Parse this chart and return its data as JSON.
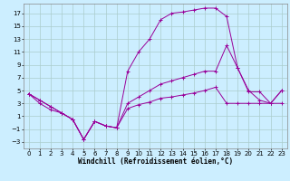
{
  "background_color": "#cceeff",
  "grid_color": "#aacccc",
  "line_color": "#990099",
  "marker": "+",
  "marker_size": 3,
  "marker_lw": 0.7,
  "line_lw": 0.7,
  "xlim": [
    -0.5,
    23.5
  ],
  "ylim": [
    -4,
    18.5
  ],
  "xticks": [
    0,
    1,
    2,
    3,
    4,
    5,
    6,
    7,
    8,
    9,
    10,
    11,
    12,
    13,
    14,
    15,
    16,
    17,
    18,
    19,
    20,
    21,
    22,
    23
  ],
  "yticks": [
    -3,
    -1,
    1,
    3,
    5,
    7,
    9,
    11,
    13,
    15,
    17
  ],
  "xlabel": "Windchill (Refroidissement éolien,°C)",
  "xlabel_fontsize": 5.5,
  "tick_fontsize": 5.0,
  "line1_x": [
    0,
    1,
    2,
    3,
    4,
    5,
    6,
    7,
    8,
    9,
    10,
    11,
    12,
    13,
    14,
    15,
    16,
    17,
    18,
    19,
    20,
    21,
    22,
    23
  ],
  "line1_y": [
    4.5,
    3.5,
    2.5,
    1.5,
    0.5,
    -2.6,
    0.2,
    -0.5,
    -0.8,
    8.0,
    11.0,
    13.0,
    16.0,
    17.0,
    17.2,
    17.5,
    17.8,
    17.8,
    16.5,
    8.5,
    4.8,
    4.8,
    3.0,
    5.0
  ],
  "line2_x": [
    0,
    1,
    2,
    3,
    4,
    5,
    6,
    7,
    8,
    9,
    10,
    11,
    12,
    13,
    14,
    15,
    16,
    17,
    18,
    19,
    20,
    21,
    22,
    23
  ],
  "line2_y": [
    4.5,
    3.5,
    2.5,
    1.5,
    0.5,
    -2.6,
    0.2,
    -0.5,
    -0.8,
    3.0,
    4.0,
    5.0,
    6.0,
    6.5,
    7.0,
    7.5,
    8.0,
    8.0,
    12.0,
    8.5,
    5.0,
    3.5,
    3.0,
    5.0
  ],
  "line3_x": [
    0,
    1,
    2,
    3,
    4,
    5,
    6,
    7,
    8,
    9,
    10,
    11,
    12,
    13,
    14,
    15,
    16,
    17,
    18,
    19,
    20,
    21,
    22,
    23
  ],
  "line3_y": [
    4.5,
    3.0,
    2.0,
    1.5,
    0.5,
    -2.6,
    0.2,
    -0.5,
    -0.8,
    2.2,
    2.8,
    3.2,
    3.8,
    4.0,
    4.3,
    4.6,
    5.0,
    5.5,
    3.0,
    3.0,
    3.0,
    3.0,
    3.0,
    3.0
  ]
}
